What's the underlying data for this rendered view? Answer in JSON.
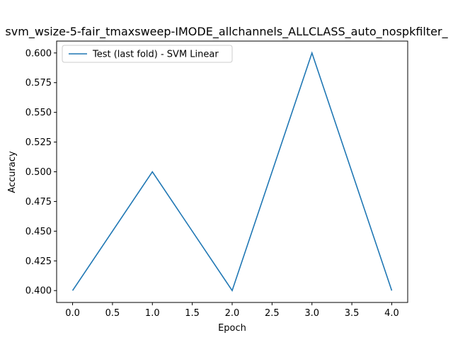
{
  "chart_data": {
    "type": "line",
    "title": "svm_wsize-5-fair_tmaxsweep-IMODE_allchannels_ALLCLASS_auto_nospkfilter_",
    "xlabel": "Epoch",
    "ylabel": "Accuracy",
    "xlim": [
      -0.2,
      4.2
    ],
    "ylim": [
      0.39,
      0.61
    ],
    "xticks": [
      0.0,
      0.5,
      1.0,
      1.5,
      2.0,
      2.5,
      3.0,
      3.5,
      4.0
    ],
    "xtick_labels": [
      "0.0",
      "0.5",
      "1.0",
      "1.5",
      "2.0",
      "2.5",
      "3.0",
      "3.5",
      "4.0"
    ],
    "yticks": [
      0.4,
      0.425,
      0.45,
      0.475,
      0.5,
      0.525,
      0.55,
      0.575,
      0.6
    ],
    "ytick_labels": [
      "0.400",
      "0.425",
      "0.450",
      "0.475",
      "0.500",
      "0.525",
      "0.550",
      "0.575",
      "0.600"
    ],
    "grid": false,
    "legend_position": "top-left",
    "series": [
      {
        "name": "Test (last fold) - SVM Linear",
        "color": "#1f77b4",
        "x": [
          0,
          1,
          2,
          3,
          4
        ],
        "y": [
          0.4,
          0.5,
          0.4,
          0.6,
          0.4
        ]
      }
    ]
  }
}
